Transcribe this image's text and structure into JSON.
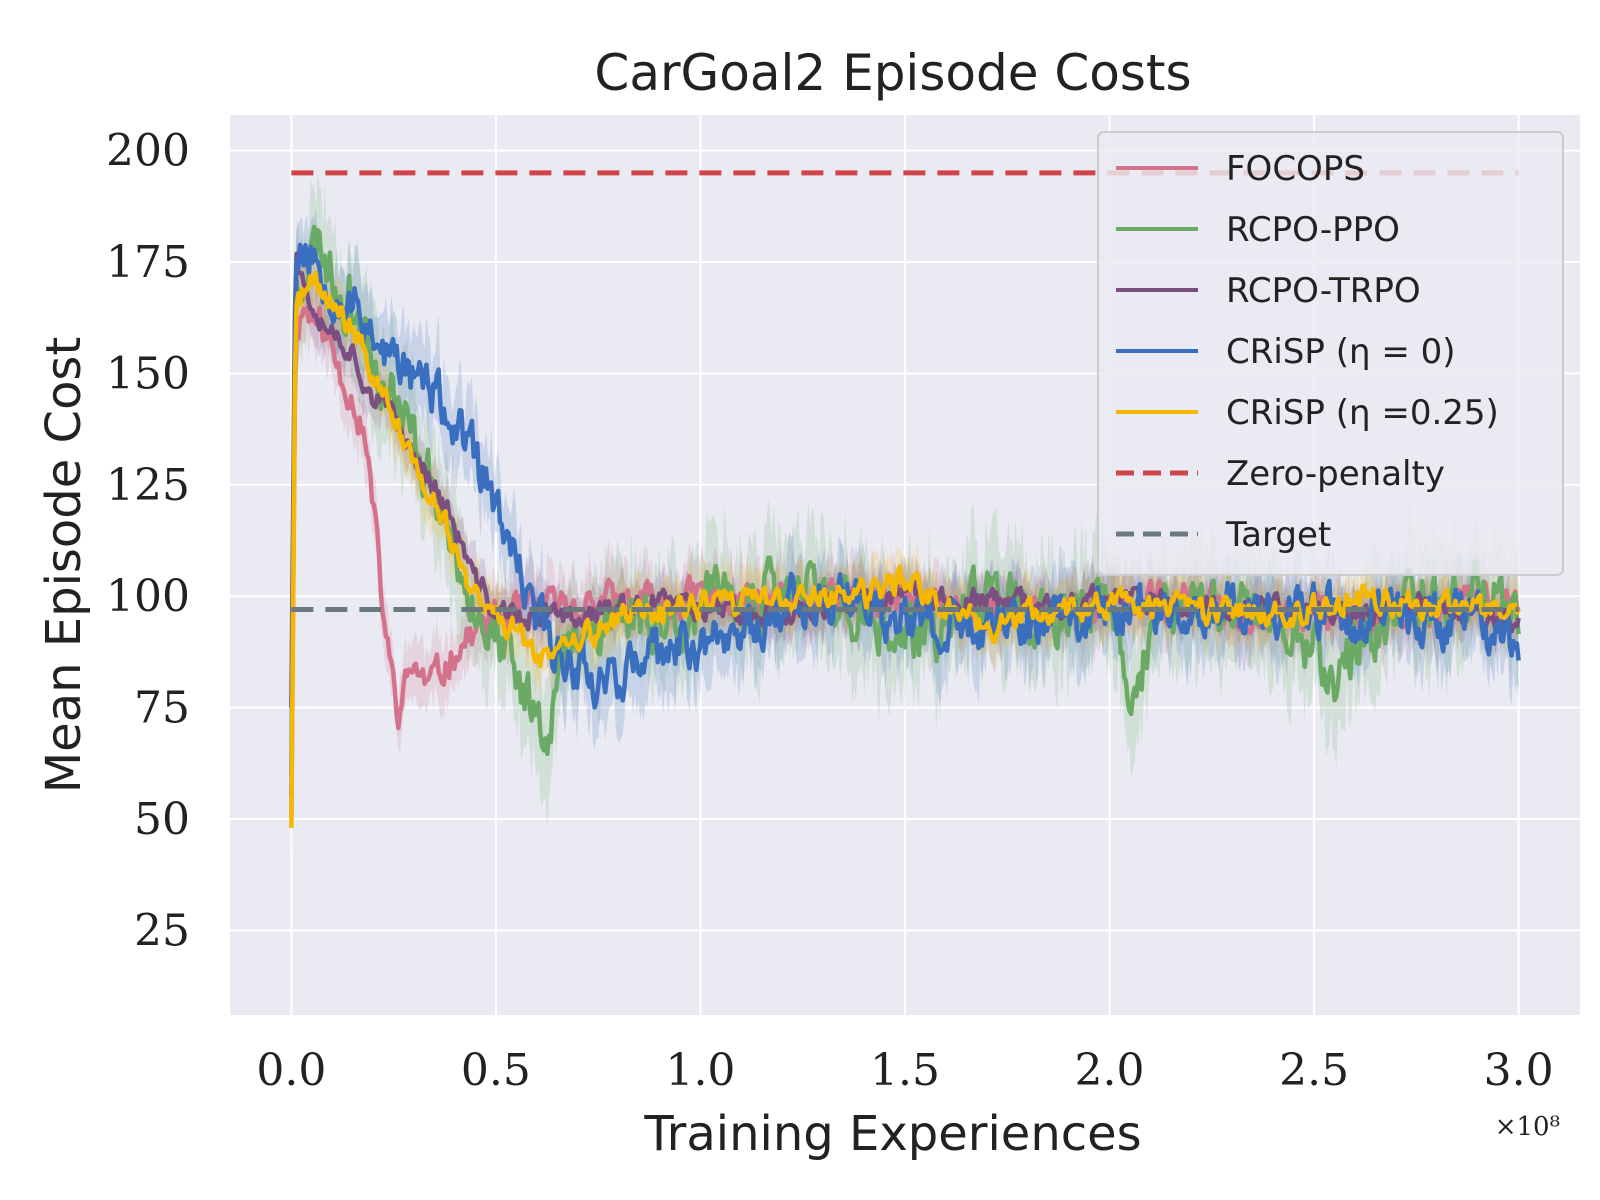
{
  "chart_data": {
    "type": "line",
    "title": "CarGoal2 Episode Costs",
    "xlabel": "Training Experiences",
    "ylabel": "Mean Episode Cost",
    "x_offset_label": "×10⁸",
    "xlim": [
      -0.15,
      3.15
    ],
    "ylim": [
      6,
      208
    ],
    "xticks": [
      0.0,
      0.5,
      1.0,
      1.5,
      2.0,
      2.5,
      3.0
    ],
    "xtick_labels": [
      "0.0",
      "0.5",
      "1.0",
      "1.5",
      "2.0",
      "2.5",
      "3.0"
    ],
    "yticks": [
      25,
      50,
      75,
      100,
      125,
      150,
      175,
      200
    ],
    "ytick_labels": [
      "25",
      "50",
      "75",
      "100",
      "125",
      "150",
      "175",
      "200"
    ],
    "grid": true,
    "legend_position": "top-right",
    "colors": {
      "background": "#eaeaf2",
      "focops": "#d4728c",
      "rcpo_ppo": "#6aaa64",
      "rcpo_trpo": "#7b4f82",
      "crisp0": "#3a6fbf",
      "crisp025": "#f5b800",
      "zero_penalty": "#d0444a",
      "target": "#6c7a80"
    },
    "series": [
      {
        "name": "FOCOPS",
        "color_key": "focops",
        "style": "solid",
        "noise": 4,
        "band": 7,
        "seed": 11,
        "x": [
          0,
          0.01,
          0.03,
          0.06,
          0.09,
          0.12,
          0.15,
          0.18,
          0.2,
          0.22,
          0.24,
          0.26,
          0.28,
          0.3,
          0.33,
          0.36,
          0.4,
          0.45,
          0.5,
          0.6,
          0.7,
          0.8,
          0.9,
          1.0,
          1.2,
          1.4,
          1.6,
          1.8,
          2.0,
          2.2,
          2.4,
          2.6,
          2.8,
          3.0
        ],
        "y": [
          50,
          160,
          165,
          162,
          158,
          150,
          145,
          135,
          120,
          100,
          85,
          74,
          80,
          85,
          80,
          82,
          88,
          92,
          95,
          97,
          98,
          99,
          98,
          100,
          98,
          99,
          98,
          97,
          98,
          99,
          96,
          95,
          98,
          99
        ]
      },
      {
        "name": "RCPO-PPO",
        "color_key": "rcpo_ppo",
        "style": "solid",
        "noise": 7,
        "band": 12,
        "seed": 23,
        "x": [
          0,
          0.01,
          0.03,
          0.07,
          0.1,
          0.15,
          0.2,
          0.25,
          0.3,
          0.35,
          0.4,
          0.45,
          0.5,
          0.55,
          0.6,
          0.63,
          0.66,
          0.7,
          0.8,
          0.9,
          1.0,
          1.1,
          1.2,
          1.3,
          1.4,
          1.5,
          1.6,
          1.7,
          1.75,
          1.8,
          1.9,
          2.0,
          2.05,
          2.1,
          2.2,
          2.3,
          2.4,
          2.5,
          2.55,
          2.6,
          2.7,
          2.8,
          2.9,
          3.0
        ],
        "y": [
          60,
          170,
          175,
          180,
          172,
          165,
          155,
          145,
          135,
          125,
          110,
          100,
          90,
          80,
          75,
          72,
          85,
          92,
          96,
          95,
          97,
          99,
          100,
          100,
          95,
          90,
          93,
          100,
          102,
          90,
          95,
          98,
          80,
          90,
          100,
          98,
          95,
          90,
          80,
          90,
          95,
          100,
          102,
          97
        ]
      },
      {
        "name": "RCPO-TRPO",
        "color_key": "rcpo_trpo",
        "style": "solid",
        "noise": 3,
        "band": 5,
        "seed": 37,
        "x": [
          0,
          0.01,
          0.03,
          0.06,
          0.1,
          0.15,
          0.2,
          0.25,
          0.3,
          0.35,
          0.4,
          0.45,
          0.5,
          0.55,
          0.6,
          0.7,
          0.8,
          0.9,
          1.0,
          1.2,
          1.4,
          1.6,
          1.8,
          2.0,
          2.2,
          2.4,
          2.6,
          2.8,
          3.0
        ],
        "y": [
          75,
          178,
          170,
          165,
          160,
          155,
          145,
          140,
          132,
          125,
          115,
          103,
          97,
          95,
          95,
          96,
          97,
          98,
          98,
          96,
          100,
          99,
          98,
          99,
          98,
          97,
          96,
          98,
          94
        ]
      },
      {
        "name": "CRiSP (η = 0)",
        "color_key": "crisp0",
        "style": "solid",
        "noise": 6,
        "band": 9,
        "seed": 53,
        "x": [
          0,
          0.01,
          0.03,
          0.06,
          0.1,
          0.15,
          0.2,
          0.25,
          0.3,
          0.35,
          0.4,
          0.45,
          0.5,
          0.55,
          0.6,
          0.65,
          0.7,
          0.75,
          0.8,
          0.9,
          1.0,
          1.1,
          1.2,
          1.3,
          1.4,
          1.5,
          1.6,
          1.7,
          1.8,
          1.9,
          2.0,
          2.2,
          2.4,
          2.6,
          2.8,
          2.95,
          3.0
        ],
        "y": [
          55,
          175,
          178,
          176,
          170,
          165,
          160,
          152,
          150,
          145,
          138,
          130,
          120,
          105,
          95,
          88,
          85,
          82,
          83,
          86,
          90,
          92,
          98,
          100,
          98,
          95,
          92,
          93,
          94,
          95,
          97,
          98,
          97,
          96,
          95,
          92,
          85
        ]
      },
      {
        "name": "CRiSP (η =0.25)",
        "color_key": "crisp025",
        "style": "solid",
        "noise": 3,
        "band": 6,
        "seed": 71,
        "x": [
          0,
          0.01,
          0.03,
          0.06,
          0.1,
          0.15,
          0.2,
          0.25,
          0.3,
          0.35,
          0.38,
          0.42,
          0.45,
          0.5,
          0.55,
          0.6,
          0.65,
          0.7,
          0.8,
          0.9,
          1.0,
          1.2,
          1.4,
          1.5,
          1.6,
          1.7,
          1.8,
          2.0,
          2.2,
          2.4,
          2.6,
          2.8,
          3.0
        ],
        "y": [
          48,
          165,
          168,
          170,
          165,
          160,
          150,
          140,
          130,
          120,
          115,
          105,
          100,
          95,
          92,
          88,
          86,
          90,
          95,
          97,
          98,
          99,
          100,
          103,
          98,
          93,
          96,
          98,
          97,
          96,
          99,
          98,
          96
        ]
      },
      {
        "name": "Zero-penalty",
        "color_key": "zero_penalty",
        "style": "dashed",
        "x": [
          0,
          3.0
        ],
        "y": [
          195,
          195
        ]
      },
      {
        "name": "Target",
        "color_key": "target",
        "style": "dashed",
        "x": [
          0,
          3.0
        ],
        "y": [
          97,
          97
        ]
      }
    ]
  }
}
